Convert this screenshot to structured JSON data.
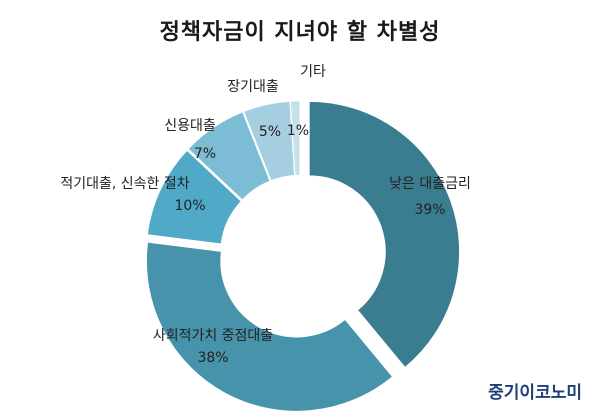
{
  "chart_data": {
    "type": "donut",
    "title": "정책자금이 지녀야 할 차별성",
    "series": [
      {
        "label": "낮은 대출금리",
        "value": 39,
        "display": "39%",
        "color": "#3a7d91"
      },
      {
        "label": "사회적가치 중점대출",
        "value": 38,
        "display": "38%",
        "color": "#4793ab"
      },
      {
        "label": "적기대출, 신속한 절차",
        "value": 10,
        "display": "10%",
        "color": "#4fa9c7"
      },
      {
        "label": "신용대출",
        "value": 7,
        "display": "7%",
        "color": "#7cbdd5"
      },
      {
        "label": "장기대출",
        "value": 5,
        "display": "5%",
        "color": "#a5cfe0"
      },
      {
        "label": "기타",
        "value": 1,
        "display": "1%",
        "color": "#c7e1ec"
      }
    ]
  },
  "watermark": "중기이코노미"
}
